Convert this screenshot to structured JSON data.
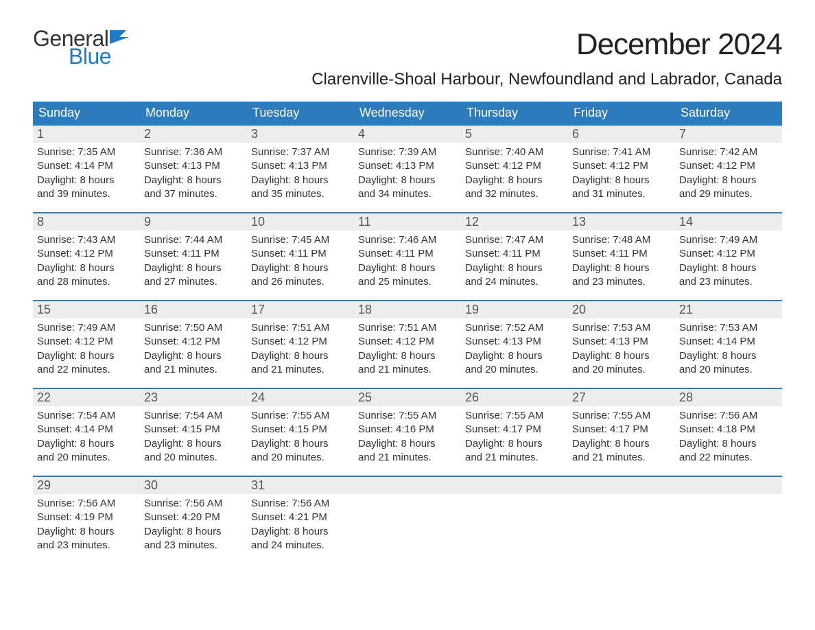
{
  "brand": {
    "general": "General",
    "blue": "Blue",
    "flag_color": "#1f7bc4"
  },
  "title": {
    "month": "December 2024",
    "location": "Clarenville-Shoal Harbour, Newfoundland and Labrador, Canada"
  },
  "colors": {
    "header_bg": "#2b7bbd",
    "header_text": "#ffffff",
    "daynum_bg": "#ededed",
    "daynum_text": "#555555",
    "body_text": "#333333",
    "week_border": "#2b7bbd",
    "page_bg": "#ffffff"
  },
  "dow": [
    "Sunday",
    "Monday",
    "Tuesday",
    "Wednesday",
    "Thursday",
    "Friday",
    "Saturday"
  ],
  "weeks": [
    [
      {
        "n": "1",
        "sr": "Sunrise: 7:35 AM",
        "ss": "Sunset: 4:14 PM",
        "d1": "Daylight: 8 hours",
        "d2": "and 39 minutes."
      },
      {
        "n": "2",
        "sr": "Sunrise: 7:36 AM",
        "ss": "Sunset: 4:13 PM",
        "d1": "Daylight: 8 hours",
        "d2": "and 37 minutes."
      },
      {
        "n": "3",
        "sr": "Sunrise: 7:37 AM",
        "ss": "Sunset: 4:13 PM",
        "d1": "Daylight: 8 hours",
        "d2": "and 35 minutes."
      },
      {
        "n": "4",
        "sr": "Sunrise: 7:39 AM",
        "ss": "Sunset: 4:13 PM",
        "d1": "Daylight: 8 hours",
        "d2": "and 34 minutes."
      },
      {
        "n": "5",
        "sr": "Sunrise: 7:40 AM",
        "ss": "Sunset: 4:12 PM",
        "d1": "Daylight: 8 hours",
        "d2": "and 32 minutes."
      },
      {
        "n": "6",
        "sr": "Sunrise: 7:41 AM",
        "ss": "Sunset: 4:12 PM",
        "d1": "Daylight: 8 hours",
        "d2": "and 31 minutes."
      },
      {
        "n": "7",
        "sr": "Sunrise: 7:42 AM",
        "ss": "Sunset: 4:12 PM",
        "d1": "Daylight: 8 hours",
        "d2": "and 29 minutes."
      }
    ],
    [
      {
        "n": "8",
        "sr": "Sunrise: 7:43 AM",
        "ss": "Sunset: 4:12 PM",
        "d1": "Daylight: 8 hours",
        "d2": "and 28 minutes."
      },
      {
        "n": "9",
        "sr": "Sunrise: 7:44 AM",
        "ss": "Sunset: 4:11 PM",
        "d1": "Daylight: 8 hours",
        "d2": "and 27 minutes."
      },
      {
        "n": "10",
        "sr": "Sunrise: 7:45 AM",
        "ss": "Sunset: 4:11 PM",
        "d1": "Daylight: 8 hours",
        "d2": "and 26 minutes."
      },
      {
        "n": "11",
        "sr": "Sunrise: 7:46 AM",
        "ss": "Sunset: 4:11 PM",
        "d1": "Daylight: 8 hours",
        "d2": "and 25 minutes."
      },
      {
        "n": "12",
        "sr": "Sunrise: 7:47 AM",
        "ss": "Sunset: 4:11 PM",
        "d1": "Daylight: 8 hours",
        "d2": "and 24 minutes."
      },
      {
        "n": "13",
        "sr": "Sunrise: 7:48 AM",
        "ss": "Sunset: 4:11 PM",
        "d1": "Daylight: 8 hours",
        "d2": "and 23 minutes."
      },
      {
        "n": "14",
        "sr": "Sunrise: 7:49 AM",
        "ss": "Sunset: 4:12 PM",
        "d1": "Daylight: 8 hours",
        "d2": "and 23 minutes."
      }
    ],
    [
      {
        "n": "15",
        "sr": "Sunrise: 7:49 AM",
        "ss": "Sunset: 4:12 PM",
        "d1": "Daylight: 8 hours",
        "d2": "and 22 minutes."
      },
      {
        "n": "16",
        "sr": "Sunrise: 7:50 AM",
        "ss": "Sunset: 4:12 PM",
        "d1": "Daylight: 8 hours",
        "d2": "and 21 minutes."
      },
      {
        "n": "17",
        "sr": "Sunrise: 7:51 AM",
        "ss": "Sunset: 4:12 PM",
        "d1": "Daylight: 8 hours",
        "d2": "and 21 minutes."
      },
      {
        "n": "18",
        "sr": "Sunrise: 7:51 AM",
        "ss": "Sunset: 4:12 PM",
        "d1": "Daylight: 8 hours",
        "d2": "and 21 minutes."
      },
      {
        "n": "19",
        "sr": "Sunrise: 7:52 AM",
        "ss": "Sunset: 4:13 PM",
        "d1": "Daylight: 8 hours",
        "d2": "and 20 minutes."
      },
      {
        "n": "20",
        "sr": "Sunrise: 7:53 AM",
        "ss": "Sunset: 4:13 PM",
        "d1": "Daylight: 8 hours",
        "d2": "and 20 minutes."
      },
      {
        "n": "21",
        "sr": "Sunrise: 7:53 AM",
        "ss": "Sunset: 4:14 PM",
        "d1": "Daylight: 8 hours",
        "d2": "and 20 minutes."
      }
    ],
    [
      {
        "n": "22",
        "sr": "Sunrise: 7:54 AM",
        "ss": "Sunset: 4:14 PM",
        "d1": "Daylight: 8 hours",
        "d2": "and 20 minutes."
      },
      {
        "n": "23",
        "sr": "Sunrise: 7:54 AM",
        "ss": "Sunset: 4:15 PM",
        "d1": "Daylight: 8 hours",
        "d2": "and 20 minutes."
      },
      {
        "n": "24",
        "sr": "Sunrise: 7:55 AM",
        "ss": "Sunset: 4:15 PM",
        "d1": "Daylight: 8 hours",
        "d2": "and 20 minutes."
      },
      {
        "n": "25",
        "sr": "Sunrise: 7:55 AM",
        "ss": "Sunset: 4:16 PM",
        "d1": "Daylight: 8 hours",
        "d2": "and 21 minutes."
      },
      {
        "n": "26",
        "sr": "Sunrise: 7:55 AM",
        "ss": "Sunset: 4:17 PM",
        "d1": "Daylight: 8 hours",
        "d2": "and 21 minutes."
      },
      {
        "n": "27",
        "sr": "Sunrise: 7:55 AM",
        "ss": "Sunset: 4:17 PM",
        "d1": "Daylight: 8 hours",
        "d2": "and 21 minutes."
      },
      {
        "n": "28",
        "sr": "Sunrise: 7:56 AM",
        "ss": "Sunset: 4:18 PM",
        "d1": "Daylight: 8 hours",
        "d2": "and 22 minutes."
      }
    ],
    [
      {
        "n": "29",
        "sr": "Sunrise: 7:56 AM",
        "ss": "Sunset: 4:19 PM",
        "d1": "Daylight: 8 hours",
        "d2": "and 23 minutes."
      },
      {
        "n": "30",
        "sr": "Sunrise: 7:56 AM",
        "ss": "Sunset: 4:20 PM",
        "d1": "Daylight: 8 hours",
        "d2": "and 23 minutes."
      },
      {
        "n": "31",
        "sr": "Sunrise: 7:56 AM",
        "ss": "Sunset: 4:21 PM",
        "d1": "Daylight: 8 hours",
        "d2": "and 24 minutes."
      },
      {
        "empty": true
      },
      {
        "empty": true
      },
      {
        "empty": true
      },
      {
        "empty": true
      }
    ]
  ]
}
